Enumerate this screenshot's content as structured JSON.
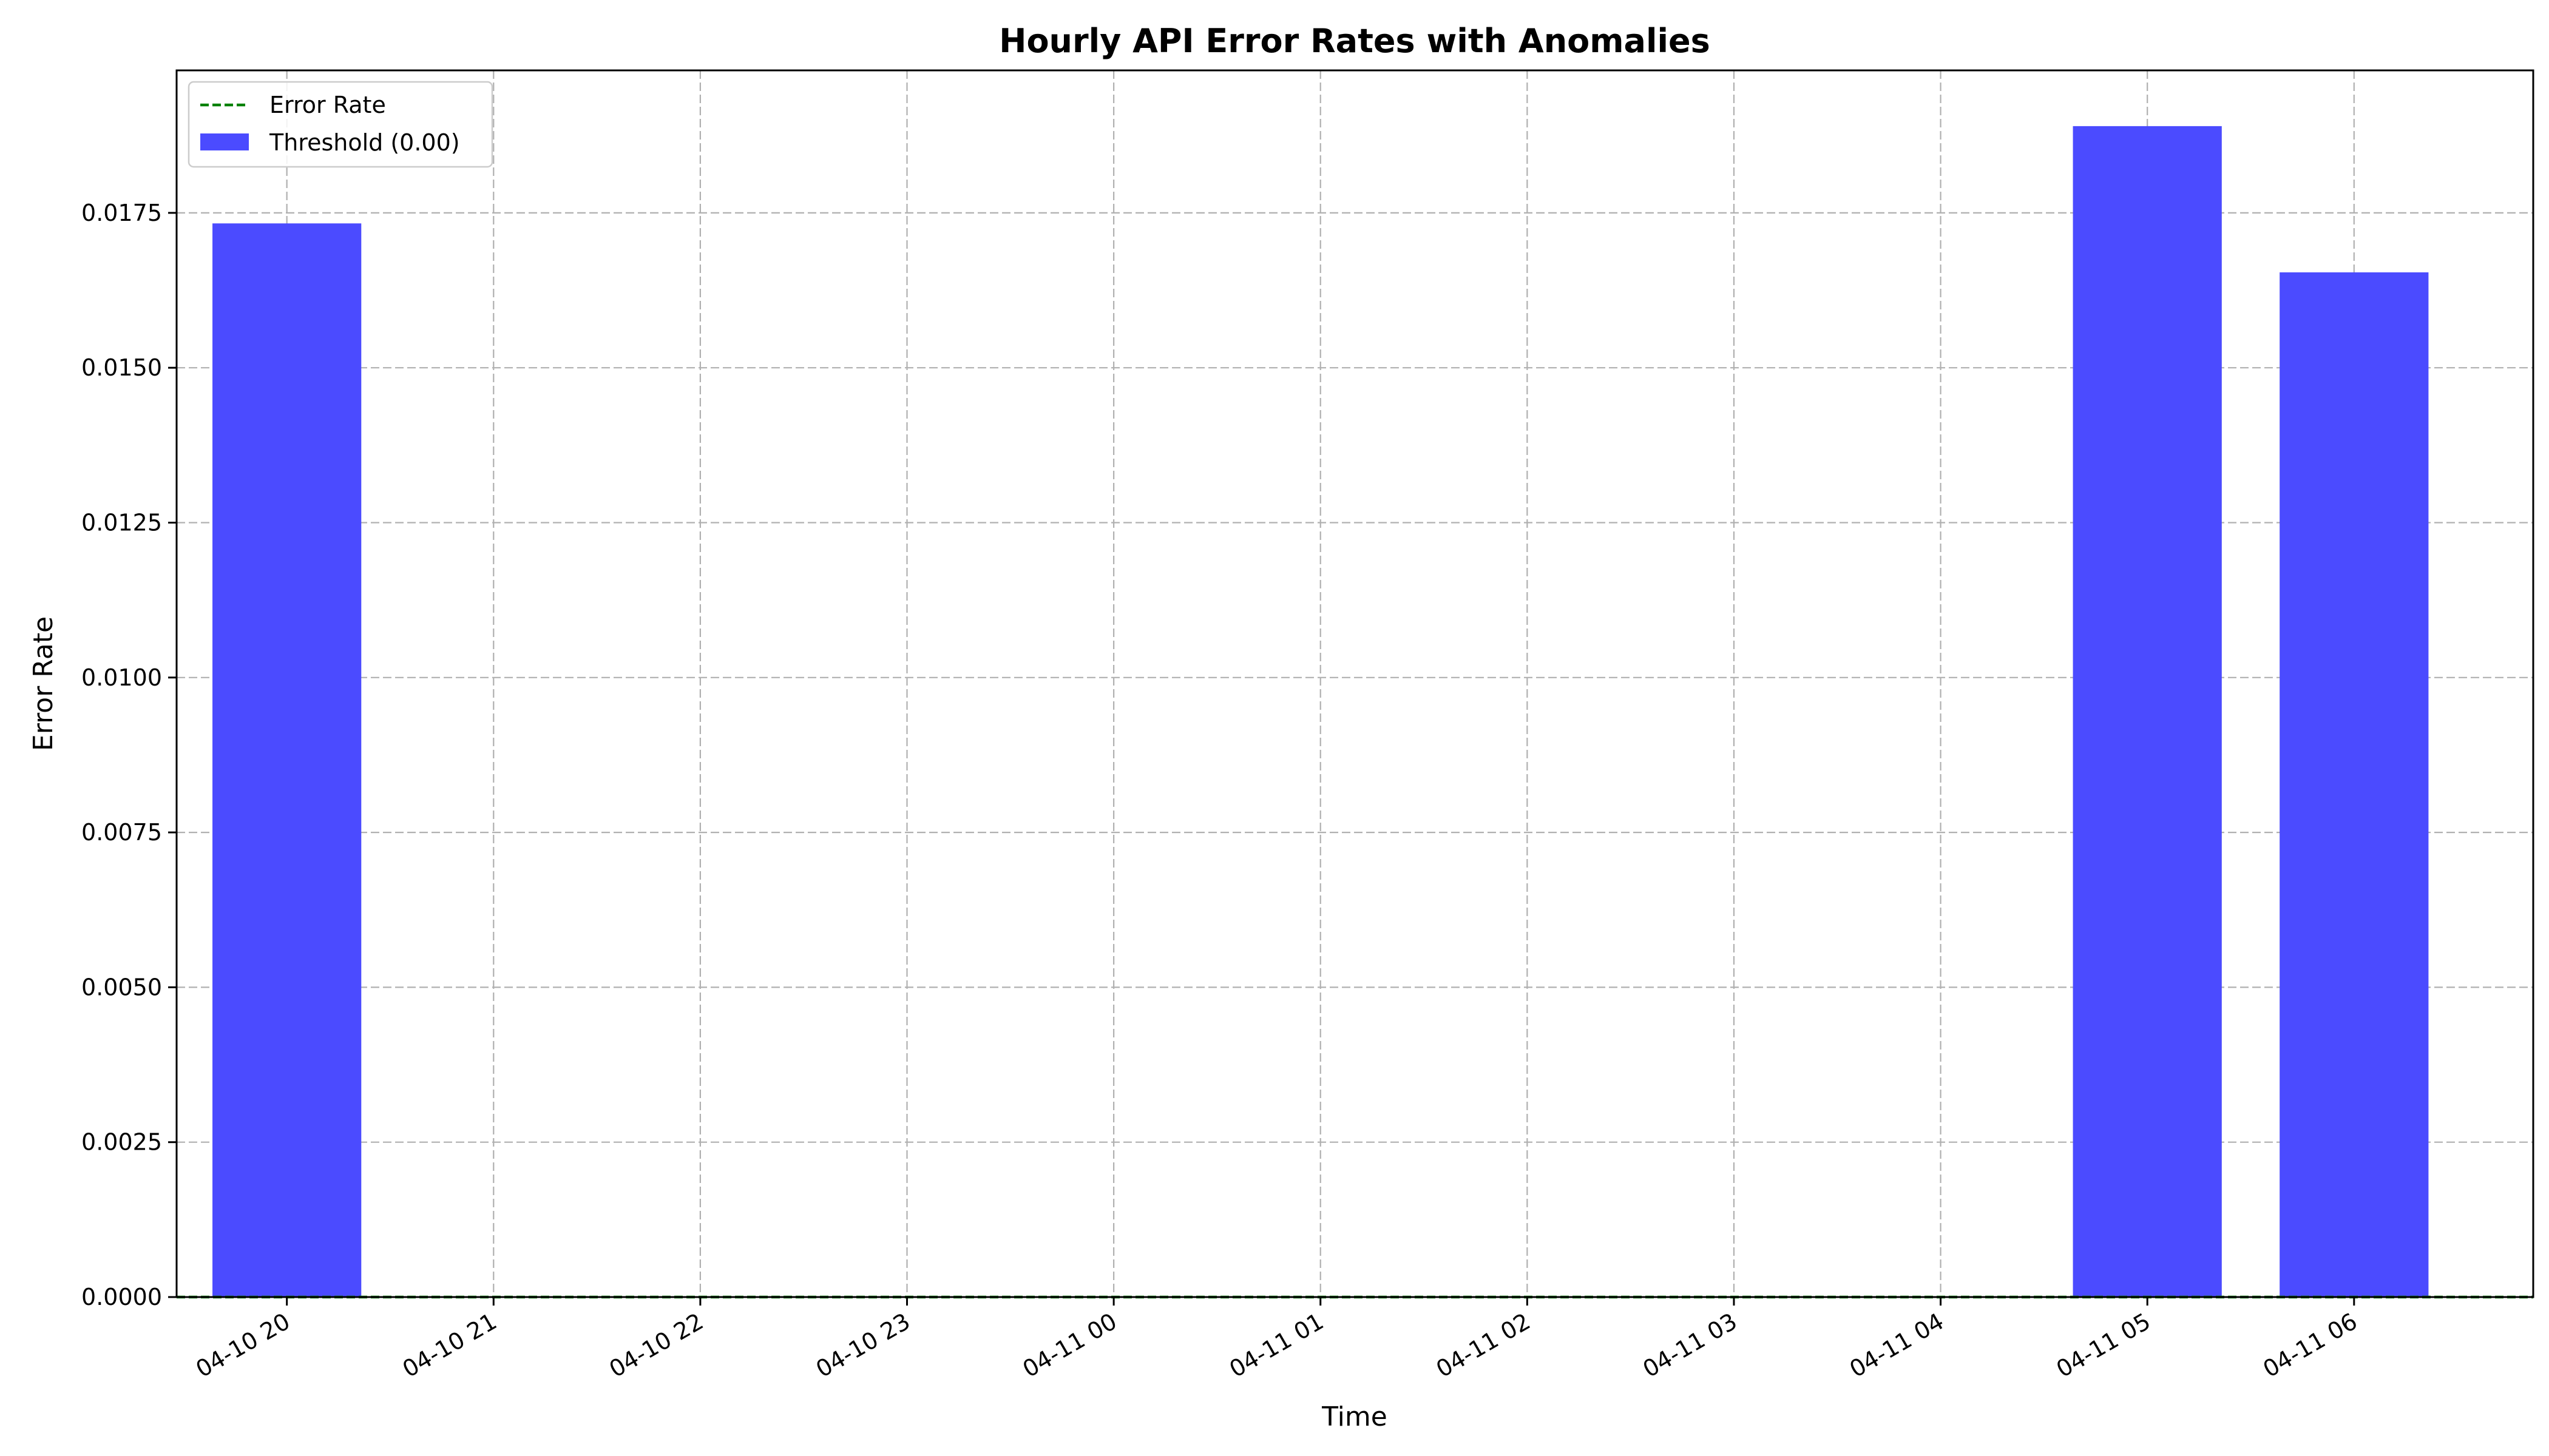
{
  "chart_data": {
    "type": "bar",
    "title": "Hourly API Error Rates with Anomalies",
    "xlabel": "Time",
    "ylabel": "Error Rate",
    "x_tick_labels": [
      "04-10 20",
      "04-10 21",
      "04-10 22",
      "04-10 23",
      "04-11 00",
      "04-11 01",
      "04-11 02",
      "04-11 03",
      "04-11 04",
      "04-11 05",
      "04-11 06"
    ],
    "y_tick_labels": [
      "0.0000",
      "0.0025",
      "0.0050",
      "0.0075",
      "0.0100",
      "0.0125",
      "0.0150",
      "0.0175"
    ],
    "ylim": [
      0,
      0.0198
    ],
    "xlim": [
      "04-10 19:28",
      "04-11 06:52"
    ],
    "grid": true,
    "legend_position": "upper-left",
    "series": [
      {
        "name": "Error Rate",
        "kind": "line",
        "style": "dashed",
        "color": "#008000",
        "x": [
          "04-10 20",
          "04-10 21",
          "04-10 22",
          "04-10 23",
          "04-11 00",
          "04-11 01",
          "04-11 02",
          "04-11 03",
          "04-11 04",
          "04-11 05",
          "04-11 06"
        ],
        "values": [
          0,
          0,
          0,
          0,
          0,
          0,
          0,
          0,
          0,
          0,
          0
        ]
      },
      {
        "name": "Threshold (0.00)",
        "kind": "bar",
        "color": "#4b4bff",
        "x": [
          "04-10 20",
          "04-10 21",
          "04-10 22",
          "04-10 23",
          "04-11 00",
          "04-11 01",
          "04-11 02",
          "04-11 03",
          "04-11 04",
          "04-11 05",
          "04-11 06"
        ],
        "values": [
          0.01733,
          0,
          0,
          0,
          0,
          0,
          0,
          0,
          0,
          0.0189,
          0.01654
        ]
      }
    ]
  }
}
